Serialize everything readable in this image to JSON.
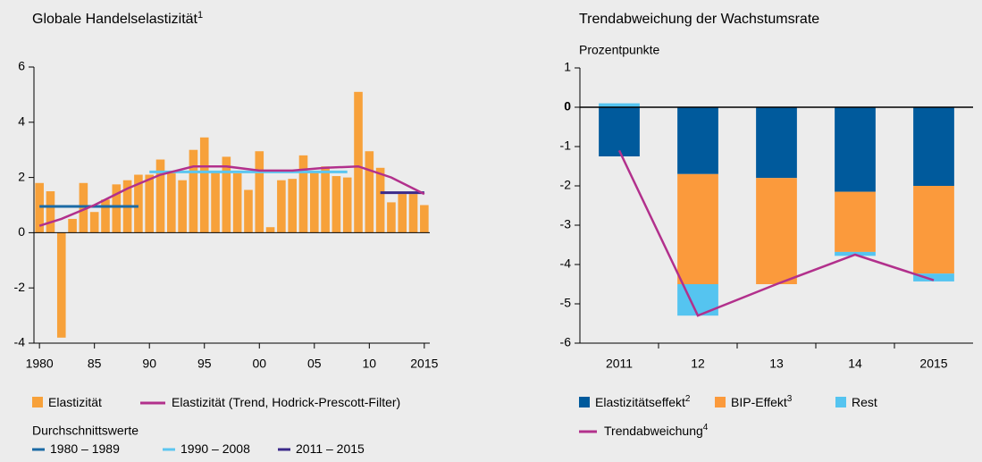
{
  "chart_data": [
    {
      "type": "bar",
      "title": "Globale Handelselastizität",
      "title_note": "1",
      "x": [
        1980,
        1981,
        1982,
        1983,
        1984,
        1985,
        1986,
        1987,
        1988,
        1989,
        1990,
        1991,
        1992,
        1993,
        1994,
        1995,
        1996,
        1997,
        1998,
        1999,
        2000,
        2001,
        2002,
        2003,
        2004,
        2005,
        2006,
        2007,
        2008,
        2009,
        2010,
        2011,
        2012,
        2013,
        2014,
        2015
      ],
      "series": [
        {
          "name": "Elastizität",
          "color": "#f7a13a",
          "values": [
            1.8,
            1.5,
            -3.8,
            0.5,
            1.8,
            0.75,
            1.2,
            1.75,
            1.9,
            2.1,
            2.1,
            2.65,
            2.2,
            1.9,
            3.0,
            3.45,
            2.2,
            2.75,
            2.15,
            1.55,
            2.95,
            0.2,
            1.9,
            1.95,
            2.8,
            2.2,
            2.4,
            2.05,
            2.0,
            5.1,
            2.95,
            2.35,
            1.1,
            1.4,
            1.4,
            1.0
          ]
        }
      ],
      "trend": {
        "name": "Elastizität (Trend, Hodrick-Prescott-Filter)",
        "color": "#b2308c",
        "x": [
          1980,
          1982,
          1985,
          1988,
          1991,
          1994,
          1997,
          2000,
          2003,
          2006,
          2009,
          2012,
          2015
        ],
        "values": [
          0.25,
          0.5,
          1.0,
          1.6,
          2.1,
          2.4,
          2.4,
          2.25,
          2.25,
          2.35,
          2.4,
          2.0,
          1.4
        ]
      },
      "averages_title": "Durchschnittswerte",
      "averages": [
        {
          "name": "1980 – 1989",
          "color": "#1b6aa5",
          "x": [
            1980,
            1989
          ],
          "value": 0.95
        },
        {
          "name": "1990 – 2008",
          "color": "#5cc6f0",
          "x": [
            1990,
            2008
          ],
          "value": 2.2
        },
        {
          "name": "2011 – 2015",
          "color": "#3b2a8a",
          "x": [
            2011,
            2015
          ],
          "value": 1.45
        }
      ],
      "xlim": [
        1979.5,
        2015.5
      ],
      "xticks": [
        1980,
        {
          "value": 1985,
          "label": "85"
        },
        {
          "value": 1990,
          "label": "90"
        },
        {
          "value": 1995,
          "label": "95"
        },
        {
          "value": 2000,
          "label": "00"
        },
        {
          "value": 2005,
          "label": "05"
        },
        {
          "value": 2010,
          "label": "10"
        },
        2015
      ],
      "ylim": [
        -4,
        6
      ],
      "yticks": [
        -4,
        -2,
        0,
        2,
        4,
        6
      ]
    },
    {
      "type": "stacked_bar",
      "title": "Trendabweichung der Wachstumsrate",
      "y_label": "Prozentpunkte",
      "categories": [
        "2011",
        "12",
        "13",
        "14",
        "2015"
      ],
      "series": [
        {
          "name": "Elastizitätseffekt",
          "note": "2",
          "color": "#005a9c",
          "values": [
            -1.25,
            -1.7,
            -1.8,
            -2.15,
            -2.0
          ]
        },
        {
          "name": "BIP-Effekt",
          "note": "3",
          "color": "#fb9a3c",
          "values": [
            0,
            -2.8,
            -2.7,
            -1.53,
            -2.23
          ]
        },
        {
          "name": "Rest",
          "color": "#55c4f0",
          "values": [
            0.1,
            -0.8,
            0,
            -0.1,
            -0.2
          ]
        }
      ],
      "line": {
        "name": "Trendabweichung",
        "note": "4",
        "color": "#b2308c",
        "values": [
          -1.1,
          -5.3,
          -4.5,
          -3.75,
          -4.4
        ]
      },
      "ylim": [
        -6,
        1
      ],
      "yticks": [
        -6,
        -5,
        -4,
        -3,
        -2,
        -1,
        0,
        1
      ]
    }
  ]
}
